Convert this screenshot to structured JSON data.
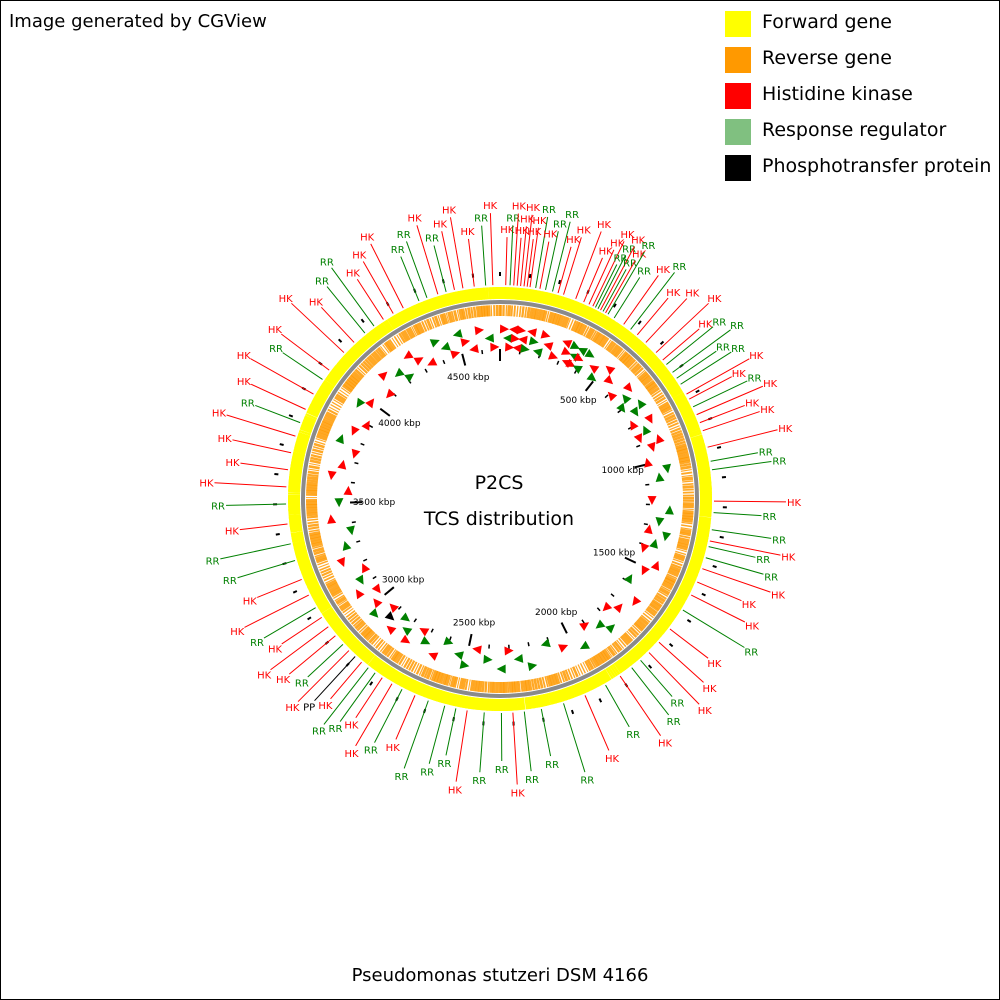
{
  "credit": "Image generated by CGView",
  "footer": "Pseudomonas stutzeri DSM 4166",
  "center": {
    "line1": "P2CS",
    "line2": "TCS distribution"
  },
  "legend": [
    {
      "label": "Forward gene",
      "color": "#ffff00"
    },
    {
      "label": "Reverse gene",
      "color": "#ff9900"
    },
    {
      "label": "Histidine kinase",
      "color": "#ff0000"
    },
    {
      "label": "Response regulator",
      "color": "#80c080"
    },
    {
      "label": "Phosphotransfer protein",
      "color": "#000000"
    }
  ],
  "map": {
    "genome_kbp": 4690,
    "backbone_color": "#8a8a8a",
    "ticks": [
      {
        "pos": 500,
        "label": "500 kbp"
      },
      {
        "pos": 1000,
        "label": "1000 kbp"
      },
      {
        "pos": 1500,
        "label": "1500 kbp"
      },
      {
        "pos": 2000,
        "label": "2000 kbp"
      },
      {
        "pos": 2500,
        "label": "2500 kbp"
      },
      {
        "pos": 3000,
        "label": "3000 kbp"
      },
      {
        "pos": 3500,
        "label": "3500 kbp"
      },
      {
        "pos": 4000,
        "label": "4000 kbp"
      },
      {
        "pos": 4500,
        "label": "4500 kbp"
      }
    ],
    "features": [
      {
        "pos": 20,
        "type": "HK"
      },
      {
        "pos": 35,
        "type": "RR"
      },
      {
        "pos": 48,
        "type": "HK"
      },
      {
        "pos": 60,
        "type": "HK"
      },
      {
        "pos": 72,
        "type": "HK"
      },
      {
        "pos": 84,
        "type": "HK"
      },
      {
        "pos": 95,
        "type": "HK"
      },
      {
        "pos": 105,
        "type": "HK"
      },
      {
        "pos": 125,
        "type": "RR"
      },
      {
        "pos": 140,
        "type": "HK"
      },
      {
        "pos": 160,
        "type": "RR"
      },
      {
        "pos": 185,
        "type": "RR"
      },
      {
        "pos": 205,
        "type": "HK"
      },
      {
        "pos": 225,
        "type": "HK"
      },
      {
        "pos": 270,
        "type": "HK"
      },
      {
        "pos": 300,
        "type": "HK"
      },
      {
        "pos": 320,
        "type": "HK"
      },
      {
        "pos": 335,
        "type": "HK"
      },
      {
        "pos": 345,
        "type": "RR"
      },
      {
        "pos": 355,
        "type": "RR"
      },
      {
        "pos": 365,
        "type": "HK"
      },
      {
        "pos": 375,
        "type": "RR"
      },
      {
        "pos": 385,
        "type": "HK"
      },
      {
        "pos": 395,
        "type": "RR"
      },
      {
        "pos": 420,
        "type": "RR"
      },
      {
        "pos": 460,
        "type": "HK"
      },
      {
        "pos": 490,
        "type": "RR"
      },
      {
        "pos": 520,
        "type": "HK"
      },
      {
        "pos": 560,
        "type": "HK"
      },
      {
        "pos": 610,
        "type": "HK"
      },
      {
        "pos": 645,
        "type": "HK"
      },
      {
        "pos": 665,
        "type": "RR"
      },
      {
        "pos": 700,
        "type": "RR"
      },
      {
        "pos": 725,
        "type": "RR"
      },
      {
        "pos": 750,
        "type": "RR"
      },
      {
        "pos": 790,
        "type": "HK"
      },
      {
        "pos": 810,
        "type": "HK"
      },
      {
        "pos": 840,
        "type": "RR"
      },
      {
        "pos": 870,
        "type": "HK"
      },
      {
        "pos": 900,
        "type": "HK"
      },
      {
        "pos": 930,
        "type": "HK"
      },
      {
        "pos": 990,
        "type": "HK"
      },
      {
        "pos": 1040,
        "type": "RR"
      },
      {
        "pos": 1070,
        "type": "RR"
      },
      {
        "pos": 1180,
        "type": "HK"
      },
      {
        "pos": 1220,
        "type": "RR"
      },
      {
        "pos": 1280,
        "type": "RR"
      },
      {
        "pos": 1320,
        "type": "HK"
      },
      {
        "pos": 1340,
        "type": "RR"
      },
      {
        "pos": 1380,
        "type": "RR"
      },
      {
        "pos": 1420,
        "type": "HK"
      },
      {
        "pos": 1470,
        "type": "HK"
      },
      {
        "pos": 1520,
        "type": "HK"
      },
      {
        "pos": 1580,
        "type": "RR"
      },
      {
        "pos": 1660,
        "type": "HK"
      },
      {
        "pos": 1720,
        "type": "HK"
      },
      {
        "pos": 1770,
        "type": "HK"
      },
      {
        "pos": 1810,
        "type": "RR"
      },
      {
        "pos": 1850,
        "type": "RR"
      },
      {
        "pos": 1900,
        "type": "HK"
      },
      {
        "pos": 1960,
        "type": "RR"
      },
      {
        "pos": 2040,
        "type": "HK"
      },
      {
        "pos": 2120,
        "type": "RR"
      },
      {
        "pos": 2200,
        "type": "RR"
      },
      {
        "pos": 2260,
        "type": "RR"
      },
      {
        "pos": 2300,
        "type": "HK"
      },
      {
        "pos": 2340,
        "type": "RR"
      },
      {
        "pos": 2400,
        "type": "RR"
      },
      {
        "pos": 2460,
        "type": "HK"
      },
      {
        "pos": 2500,
        "type": "RR"
      },
      {
        "pos": 2540,
        "type": "RR"
      },
      {
        "pos": 2600,
        "type": "RR"
      },
      {
        "pos": 2650,
        "type": "HK"
      },
      {
        "pos": 2700,
        "type": "RR"
      },
      {
        "pos": 2740,
        "type": "HK"
      },
      {
        "pos": 2780,
        "type": "HK"
      },
      {
        "pos": 2810,
        "type": "RR"
      },
      {
        "pos": 2840,
        "type": "RR"
      },
      {
        "pos": 2870,
        "type": "HK"
      },
      {
        "pos": 2900,
        "type": "PP"
      },
      {
        "pos": 2930,
        "type": "HK"
      },
      {
        "pos": 2960,
        "type": "RR"
      },
      {
        "pos": 3000,
        "type": "HK"
      },
      {
        "pos": 3040,
        "type": "HK"
      },
      {
        "pos": 3080,
        "type": "HK"
      },
      {
        "pos": 3120,
        "type": "RR"
      },
      {
        "pos": 3170,
        "type": "HK"
      },
      {
        "pos": 3230,
        "type": "HK"
      },
      {
        "pos": 3300,
        "type": "RR"
      },
      {
        "pos": 3360,
        "type": "RR"
      },
      {
        "pos": 3430,
        "type": "HK"
      },
      {
        "pos": 3500,
        "type": "RR"
      },
      {
        "pos": 3560,
        "type": "HK"
      },
      {
        "pos": 3620,
        "type": "HK"
      },
      {
        "pos": 3680,
        "type": "HK"
      },
      {
        "pos": 3740,
        "type": "HK"
      },
      {
        "pos": 3790,
        "type": "RR"
      },
      {
        "pos": 3840,
        "type": "HK"
      },
      {
        "pos": 3900,
        "type": "HK"
      },
      {
        "pos": 3960,
        "type": "RR"
      },
      {
        "pos": 4000,
        "type": "HK"
      },
      {
        "pos": 4080,
        "type": "HK"
      },
      {
        "pos": 4130,
        "type": "HK"
      },
      {
        "pos": 4180,
        "type": "RR"
      },
      {
        "pos": 4220,
        "type": "RR"
      },
      {
        "pos": 4260,
        "type": "HK"
      },
      {
        "pos": 4300,
        "type": "HK"
      },
      {
        "pos": 4340,
        "type": "HK"
      },
      {
        "pos": 4400,
        "type": "RR"
      },
      {
        "pos": 4430,
        "type": "RR"
      },
      {
        "pos": 4470,
        "type": "HK"
      },
      {
        "pos": 4500,
        "type": "RR"
      },
      {
        "pos": 4530,
        "type": "HK"
      },
      {
        "pos": 4560,
        "type": "HK"
      },
      {
        "pos": 4600,
        "type": "HK"
      },
      {
        "pos": 4640,
        "type": "RR"
      },
      {
        "pos": 4665,
        "type": "HK"
      }
    ]
  }
}
